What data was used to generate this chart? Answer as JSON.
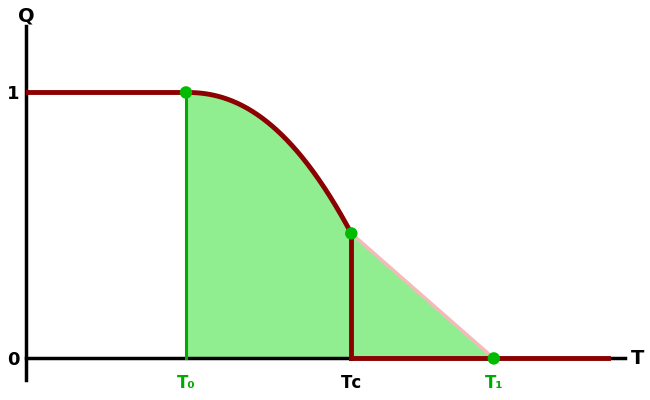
{
  "T0": 0.28,
  "Tc": 0.57,
  "T1": 0.82,
  "Q_at_T0": 1.0,
  "Q_at_Tc": 0.47,
  "Q_at_T1": 0.0,
  "xlim": [
    0,
    1.05
  ],
  "ylim": [
    -0.08,
    1.25
  ],
  "curve_color": "#8B0000",
  "metastable_color": "#F4BABA",
  "green_fill": "#90EE90",
  "green_dot_color": "#00BB00",
  "vline_color": "#00AA00",
  "curve_lw": 3.5,
  "meta_lw": 2.5,
  "vline_lw": 2.2,
  "dot_size": 80,
  "T0_label": "T₀",
  "Tc_label": "Tᴄ",
  "T1_label": "T₁",
  "label_color_T0": "#00AA00",
  "label_color_Tc": "#000000",
  "label_color_T1": "#00AA00",
  "xlabel": "T",
  "ylabel": "Q"
}
